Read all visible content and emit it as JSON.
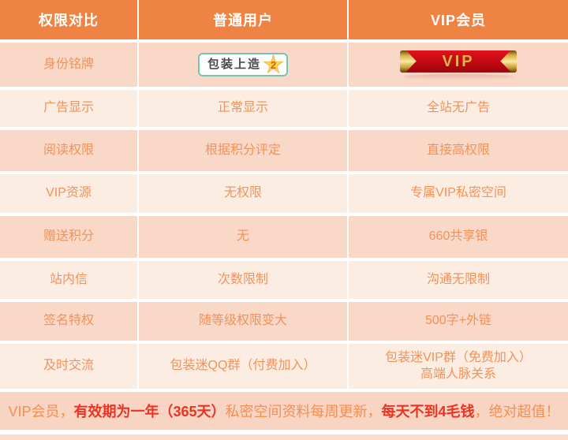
{
  "table": {
    "headers": [
      {
        "label": "权限对比"
      },
      {
        "label": "普通用户"
      },
      {
        "label": "VIP会员"
      }
    ],
    "rows": [
      {
        "feature": "身份铭牌",
        "normal": "包装上造",
        "vip": "VIP"
      },
      {
        "feature": "广告显示",
        "normal": "正常显示",
        "vip": "全站无广告"
      },
      {
        "feature": "阅读权限",
        "normal": "根据积分评定",
        "vip": "直接高权限"
      },
      {
        "feature": "VIP资源",
        "normal": "无权限",
        "vip": "专属VIP私密空间"
      },
      {
        "feature": "赠送积分",
        "normal": "无",
        "vip": "660共享银"
      },
      {
        "feature": "站内信",
        "normal": "次数限制",
        "vip": "沟通无限制"
      },
      {
        "feature": "签名特权",
        "normal": "随等级权限变大",
        "vip": "500字+外链"
      },
      {
        "feature": "及时交流",
        "normal": "包装迷QQ群（付费加入）",
        "vip_line1": "包装迷VIP群（免费加入）",
        "vip_line2": "高端人脉关系"
      }
    ]
  },
  "badges": {
    "normal_badge": {
      "text": "包装上造",
      "star_number": "2"
    },
    "vip_badge": {
      "text": "VIP"
    }
  },
  "promo": {
    "segments": [
      {
        "text": "VIP会员，",
        "style": "orange"
      },
      {
        "text": "有效期为一年（365天）",
        "style": "red"
      },
      {
        "text": "私密空间资料每周更新，",
        "style": "orange"
      },
      {
        "text": "每天不到4毛钱",
        "style": "red"
      },
      {
        "text": "，绝对超值！",
        "style": "orange"
      }
    ]
  },
  "colors": {
    "header_bg": "#EF8343",
    "row_light": "#FCEDE3",
    "row_dark": "#F9D8C7",
    "promo_bg": "#F8D4C2",
    "cell_text": "#F2925A",
    "promo_red": "#E93423",
    "badge_border_teal": "#74C7AC",
    "vip_ribbon_red": "#C00812",
    "vip_gold": "#E3B04B",
    "star_gold": "#FFD44E"
  }
}
